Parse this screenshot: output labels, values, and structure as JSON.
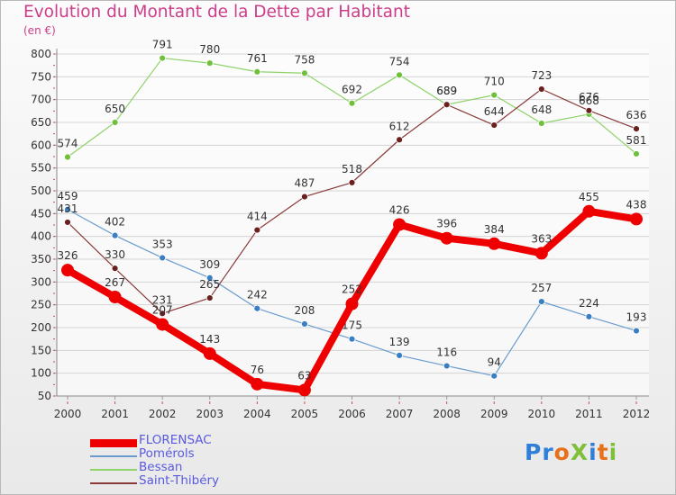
{
  "title": "Evolution du Montant de la Dette par Habitant",
  "unit": "(en €)",
  "logo": {
    "text": "ProXiti",
    "letters": [
      {
        "ch": "P",
        "color": "#2f7ed8"
      },
      {
        "ch": "r",
        "color": "#2f7ed8"
      },
      {
        "ch": "o",
        "color": "#e8701a"
      },
      {
        "ch": "X",
        "color": "#7fbf3a"
      },
      {
        "ch": "i",
        "color": "#2f7ed8"
      },
      {
        "ch": "t",
        "color": "#e8701a"
      },
      {
        "ch": "i",
        "color": "#7fbf3a"
      }
    ]
  },
  "chart_data": {
    "type": "line",
    "title": "Evolution du Montant de la Dette par Habitant",
    "ylabel": "(en €)",
    "xlabel": "",
    "categories": [
      "2000",
      "2001",
      "2002",
      "2003",
      "2004",
      "2005",
      "2006",
      "2007",
      "2008",
      "2009",
      "2010",
      "2011",
      "2012"
    ],
    "ylim": [
      50,
      800
    ],
    "yticks": [
      50,
      100,
      150,
      200,
      250,
      300,
      350,
      400,
      450,
      500,
      550,
      600,
      650,
      700,
      750,
      800
    ],
    "grid": "horizontal",
    "legend_position": "bottom-left",
    "series": [
      {
        "name": "Pomérols",
        "color": "#6b9ccf",
        "marker": "#3a7fc4",
        "width": 1.2,
        "marker_r": 3.5,
        "label_dy": -11,
        "values": [
          459,
          402,
          353,
          309,
          242,
          208,
          175,
          139,
          116,
          94,
          257,
          224,
          193
        ]
      },
      {
        "name": "Bessan",
        "color": "#8ed36a",
        "marker": "#6fc13c",
        "width": 1.2,
        "marker_r": 3.5,
        "label_dy": -11,
        "values": [
          574,
          650,
          791,
          780,
          761,
          758,
          692,
          754,
          689,
          710,
          648,
          668,
          581
        ]
      },
      {
        "name": "Saint-Thibéry",
        "color": "#8a3a3a",
        "marker": "#6b2020",
        "width": 1.2,
        "marker_r": 3.5,
        "label_dy": -11,
        "values": [
          431,
          330,
          231,
          265,
          414,
          487,
          518,
          612,
          689,
          644,
          723,
          676,
          636
        ]
      },
      {
        "name": "FLORENSAC",
        "color": "#ee0000",
        "marker": "#ee0000",
        "width": 8,
        "marker_r": 7,
        "label_dy": -12,
        "values": [
          326,
          267,
          207,
          143,
          76,
          63,
          252,
          426,
          396,
          384,
          363,
          455,
          438
        ]
      }
    ],
    "legend_order": [
      "FLORENSAC",
      "Pomérols",
      "Bessan",
      "Saint-Thibéry"
    ]
  }
}
